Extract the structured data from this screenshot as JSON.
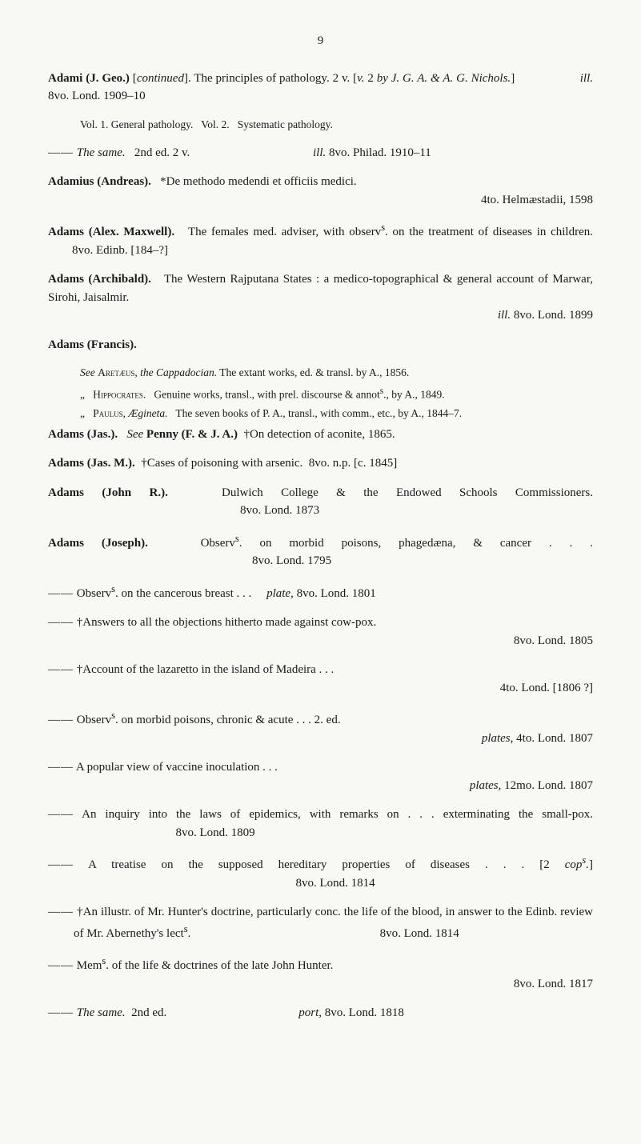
{
  "pageNumber": "9",
  "entries": [
    {
      "html": "<strong>Adami (J. Geo.)</strong> [<em>continued</em>]. The principles of pathology. 2 v. [<em>v.</em> 2 <em>by J. G. A. &amp; A. G. Nichols.</em>] &nbsp;&nbsp;&nbsp;&nbsp;&nbsp;&nbsp;&nbsp;&nbsp;&nbsp;&nbsp;&nbsp;&nbsp;&nbsp;&nbsp;&nbsp;&nbsp;&nbsp;&nbsp;&nbsp;&nbsp;<em>ill.</em> 8vo. Lond. 1909–10"
    },
    {
      "class": "indent-block",
      "html": "Vol. 1. General pathology. &nbsp; Vol. 2. &nbsp; Systematic pathology."
    },
    {
      "class": "entry-sub",
      "html": "<span class='dash'>——</span> <em>The same.</em> &nbsp; 2nd ed. 2 v. &nbsp;&nbsp;&nbsp;&nbsp;&nbsp;&nbsp;&nbsp;&nbsp;&nbsp;&nbsp;&nbsp;&nbsp;&nbsp;&nbsp;&nbsp;&nbsp;&nbsp;&nbsp;&nbsp;&nbsp;&nbsp;&nbsp;&nbsp;&nbsp;&nbsp;&nbsp;&nbsp;&nbsp;&nbsp;&nbsp;&nbsp;&nbsp;&nbsp;&nbsp;&nbsp;&nbsp;&nbsp;&nbsp;&nbsp;&nbsp;<em>ill.</em> 8vo. Philad. 1910–11"
    },
    {
      "html": "<strong>Adamius (Andreas).</strong> &nbsp; *De methodo medendi et officiis medici.<br><span style='display:block;text-align:right'>4to. Helmæstadii, 1598</span>"
    },
    {
      "html": "<strong>Adams (Alex. Maxwell).</strong> &nbsp; The females med. adviser, with observ<sup>s</sup>. on the treatment of diseases in children. &nbsp;&nbsp;&nbsp;&nbsp;&nbsp;&nbsp;&nbsp;&nbsp;8vo. Edinb. [184–?]"
    },
    {
      "html": "<strong>Adams (Archibald).</strong> &nbsp; The Western Rajputana States : a medico-topographical &amp; general account of Marwar, Sirohi, Jaisalmir.<br><span style='display:block;text-align:right'><em>ill.</em> 8vo. Lond. 1899</span>"
    },
    {
      "html": "<strong>Adams (Francis).</strong>"
    },
    {
      "class": "see-note",
      "html": "<em>See</em> <span class='sc'>Aretæus</span>, <em>the Cappadocian.</em> The extant works, ed. &amp; transl. by A., 1856."
    },
    {
      "class": "see-note",
      "html": "„ &nbsp; <span class='sc'>Hippocrates</span>. &nbsp; Genuine works, transl., with prel. discourse &amp; annot<sup>s</sup>., by A., 1849."
    },
    {
      "class": "see-note",
      "html": "„ &nbsp; <span class='sc'>Paulus</span>, <em>Ægineta.</em> &nbsp; The seven books of P. A., transl., with comm., etc., by A., 1844–7."
    },
    {
      "html": "<strong>Adams (Jas.).</strong> &nbsp; <em>See</em> <strong>Penny (F. &amp; J. A.)</strong> &nbsp;†On detection of aconite, 1865."
    },
    {
      "html": "<strong>Adams (Jas. M.).</strong> &nbsp;†Cases of poisoning with arsenic. &nbsp;8vo. n.p. [c. 1845]"
    },
    {
      "html": "<strong>Adams (John R.).</strong> &nbsp; Dulwich College &amp; the Endowed Schools Commissioners. &nbsp;&nbsp;&nbsp;&nbsp;&nbsp;&nbsp;&nbsp;&nbsp;&nbsp;&nbsp;&nbsp;&nbsp;&nbsp;&nbsp;&nbsp;&nbsp;&nbsp;&nbsp;&nbsp;&nbsp;&nbsp;&nbsp;&nbsp;&nbsp;&nbsp;&nbsp;&nbsp;&nbsp;&nbsp;&nbsp;&nbsp;&nbsp;&nbsp;&nbsp;&nbsp;&nbsp;&nbsp;&nbsp;&nbsp;&nbsp;&nbsp;&nbsp;&nbsp;&nbsp;&nbsp;&nbsp;&nbsp;&nbsp;&nbsp;&nbsp;&nbsp;&nbsp;&nbsp;&nbsp;&nbsp;&nbsp;&nbsp;&nbsp;&nbsp;&nbsp;&nbsp;&nbsp;&nbsp;&nbsp;8vo. Lond. 1873"
    },
    {
      "html": "<strong>Adams (Joseph).</strong> &nbsp; Observ<sup>s</sup>. on morbid poisons, phagedæna, &amp; cancer . . . &nbsp;&nbsp;&nbsp;&nbsp;&nbsp;&nbsp;&nbsp;&nbsp;&nbsp;&nbsp;&nbsp;&nbsp;&nbsp;&nbsp;&nbsp;&nbsp;&nbsp;&nbsp;&nbsp;&nbsp;&nbsp;&nbsp;&nbsp;&nbsp;&nbsp;&nbsp;&nbsp;&nbsp;&nbsp;&nbsp;&nbsp;&nbsp;&nbsp;&nbsp;&nbsp;&nbsp;&nbsp;&nbsp;&nbsp;&nbsp;&nbsp;&nbsp;&nbsp;&nbsp;&nbsp;&nbsp;&nbsp;&nbsp;&nbsp;&nbsp;&nbsp;&nbsp;&nbsp;&nbsp;&nbsp;&nbsp;&nbsp;&nbsp;&nbsp;&nbsp;&nbsp;&nbsp;&nbsp;&nbsp;&nbsp;&nbsp;&nbsp;&nbsp;8vo. Lond. 1795"
    },
    {
      "class": "entry-sub",
      "html": "<span class='dash'>——</span> Observ<sup>s</sup>. on the cancerous breast . . . &nbsp;&nbsp;&nbsp;&nbsp;<em>plate,</em> 8vo. Lond. 1801"
    },
    {
      "class": "entry-sub",
      "html": "<span class='dash'>——</span> †Answers to all the objections hitherto made against cow-pox.<br><span style='display:block;text-align:right'>8vo. Lond. 1805</span>"
    },
    {
      "class": "entry-sub",
      "html": "<span class='dash'>——</span> †Account of the lazaretto in the island of Madeira . . .<br><span style='display:block;text-align:right'>4to. Lond. [1806 ?]</span>"
    },
    {
      "class": "entry-sub",
      "html": "<span class='dash'>——</span> Observ<sup>s</sup>. on morbid poisons, chronic &amp; acute . . . 2. ed.<br><span style='display:block;text-align:right'><em>plates,</em> 4to. Lond. 1807</span>"
    },
    {
      "class": "entry-sub",
      "html": "<span class='dash'>——</span> A popular view of vaccine inoculation . . .<br><span style='display:block;text-align:right'><em>plates,</em> 12mo. Lond. 1807</span>"
    },
    {
      "class": "entry-sub",
      "html": "<span class='dash'>——</span> An inquiry into the laws of epidemics, with remarks on . . . exterminating the small-pox. &nbsp;&nbsp;&nbsp;&nbsp;&nbsp;&nbsp;&nbsp;&nbsp;&nbsp;&nbsp;&nbsp;&nbsp;&nbsp;&nbsp;&nbsp;&nbsp;&nbsp;&nbsp;&nbsp;&nbsp;&nbsp;&nbsp;&nbsp;&nbsp;&nbsp;&nbsp;&nbsp;&nbsp;&nbsp;&nbsp;&nbsp;&nbsp;&nbsp;&nbsp;8vo. Lond. 1809"
    },
    {
      "class": "entry-sub",
      "html": "<span class='dash'>——</span> A treatise on the supposed hereditary properties of diseases . . . [2 <em>cop<sup>s</sup>.</em>] &nbsp;&nbsp;&nbsp;&nbsp;&nbsp;&nbsp;&nbsp;&nbsp;&nbsp;&nbsp;&nbsp;&nbsp;&nbsp;&nbsp;&nbsp;&nbsp;&nbsp;&nbsp;&nbsp;&nbsp;&nbsp;&nbsp;&nbsp;&nbsp;&nbsp;&nbsp;&nbsp;&nbsp;&nbsp;&nbsp;&nbsp;&nbsp;&nbsp;&nbsp;&nbsp;&nbsp;&nbsp;&nbsp;&nbsp;&nbsp;&nbsp;&nbsp;&nbsp;&nbsp;&nbsp;&nbsp;&nbsp;&nbsp;&nbsp;&nbsp;&nbsp;&nbsp;&nbsp;&nbsp;&nbsp;&nbsp;&nbsp;&nbsp;&nbsp;&nbsp;&nbsp;&nbsp;&nbsp;&nbsp;&nbsp;&nbsp;&nbsp;&nbsp;&nbsp;&nbsp;&nbsp;&nbsp;&nbsp;&nbsp;8vo. Lond. 1814"
    },
    {
      "class": "entry-sub",
      "html": "<span class='dash'>——</span> †An illustr. of Mr. Hunter's doctrine, particularly conc. the life of the blood, in answer to the Edinb. review of Mr. Abernethy's lect<sup>s</sup>. &nbsp;&nbsp;&nbsp;&nbsp;&nbsp;&nbsp;&nbsp;&nbsp;&nbsp;&nbsp;&nbsp;&nbsp;&nbsp;&nbsp;&nbsp;&nbsp;&nbsp;&nbsp;&nbsp;&nbsp;&nbsp;&nbsp;&nbsp;&nbsp;&nbsp;&nbsp;&nbsp;&nbsp;&nbsp;&nbsp;&nbsp;&nbsp;&nbsp;&nbsp;&nbsp;&nbsp;&nbsp;&nbsp;&nbsp;&nbsp;&nbsp;&nbsp;&nbsp;&nbsp;&nbsp;&nbsp;&nbsp;&nbsp;&nbsp;&nbsp;&nbsp;&nbsp;&nbsp;&nbsp;&nbsp;&nbsp;&nbsp;&nbsp;&nbsp;&nbsp;&nbsp;&nbsp;8vo. Lond. 1814"
    },
    {
      "class": "entry-sub",
      "html": "<span class='dash'>——</span> Mem<sup>s</sup>. of the life &amp; doctrines of the late John Hunter.<br><span style='display:block;text-align:right'>8vo. Lond. 1817</span>"
    },
    {
      "class": "entry-sub",
      "html": "<span class='dash'>——</span> <em>The same.</em> &nbsp;2nd ed. &nbsp;&nbsp;&nbsp;&nbsp;&nbsp;&nbsp;&nbsp;&nbsp;&nbsp;&nbsp;&nbsp;&nbsp;&nbsp;&nbsp;&nbsp;&nbsp;&nbsp;&nbsp;&nbsp;&nbsp;&nbsp;&nbsp;&nbsp;&nbsp;&nbsp;&nbsp;&nbsp;&nbsp;&nbsp;&nbsp;&nbsp;&nbsp;&nbsp;&nbsp;&nbsp;&nbsp;&nbsp;&nbsp;&nbsp;&nbsp;&nbsp;&nbsp;&nbsp;<em>port,</em> 8vo. Lond. 1818"
    }
  ]
}
